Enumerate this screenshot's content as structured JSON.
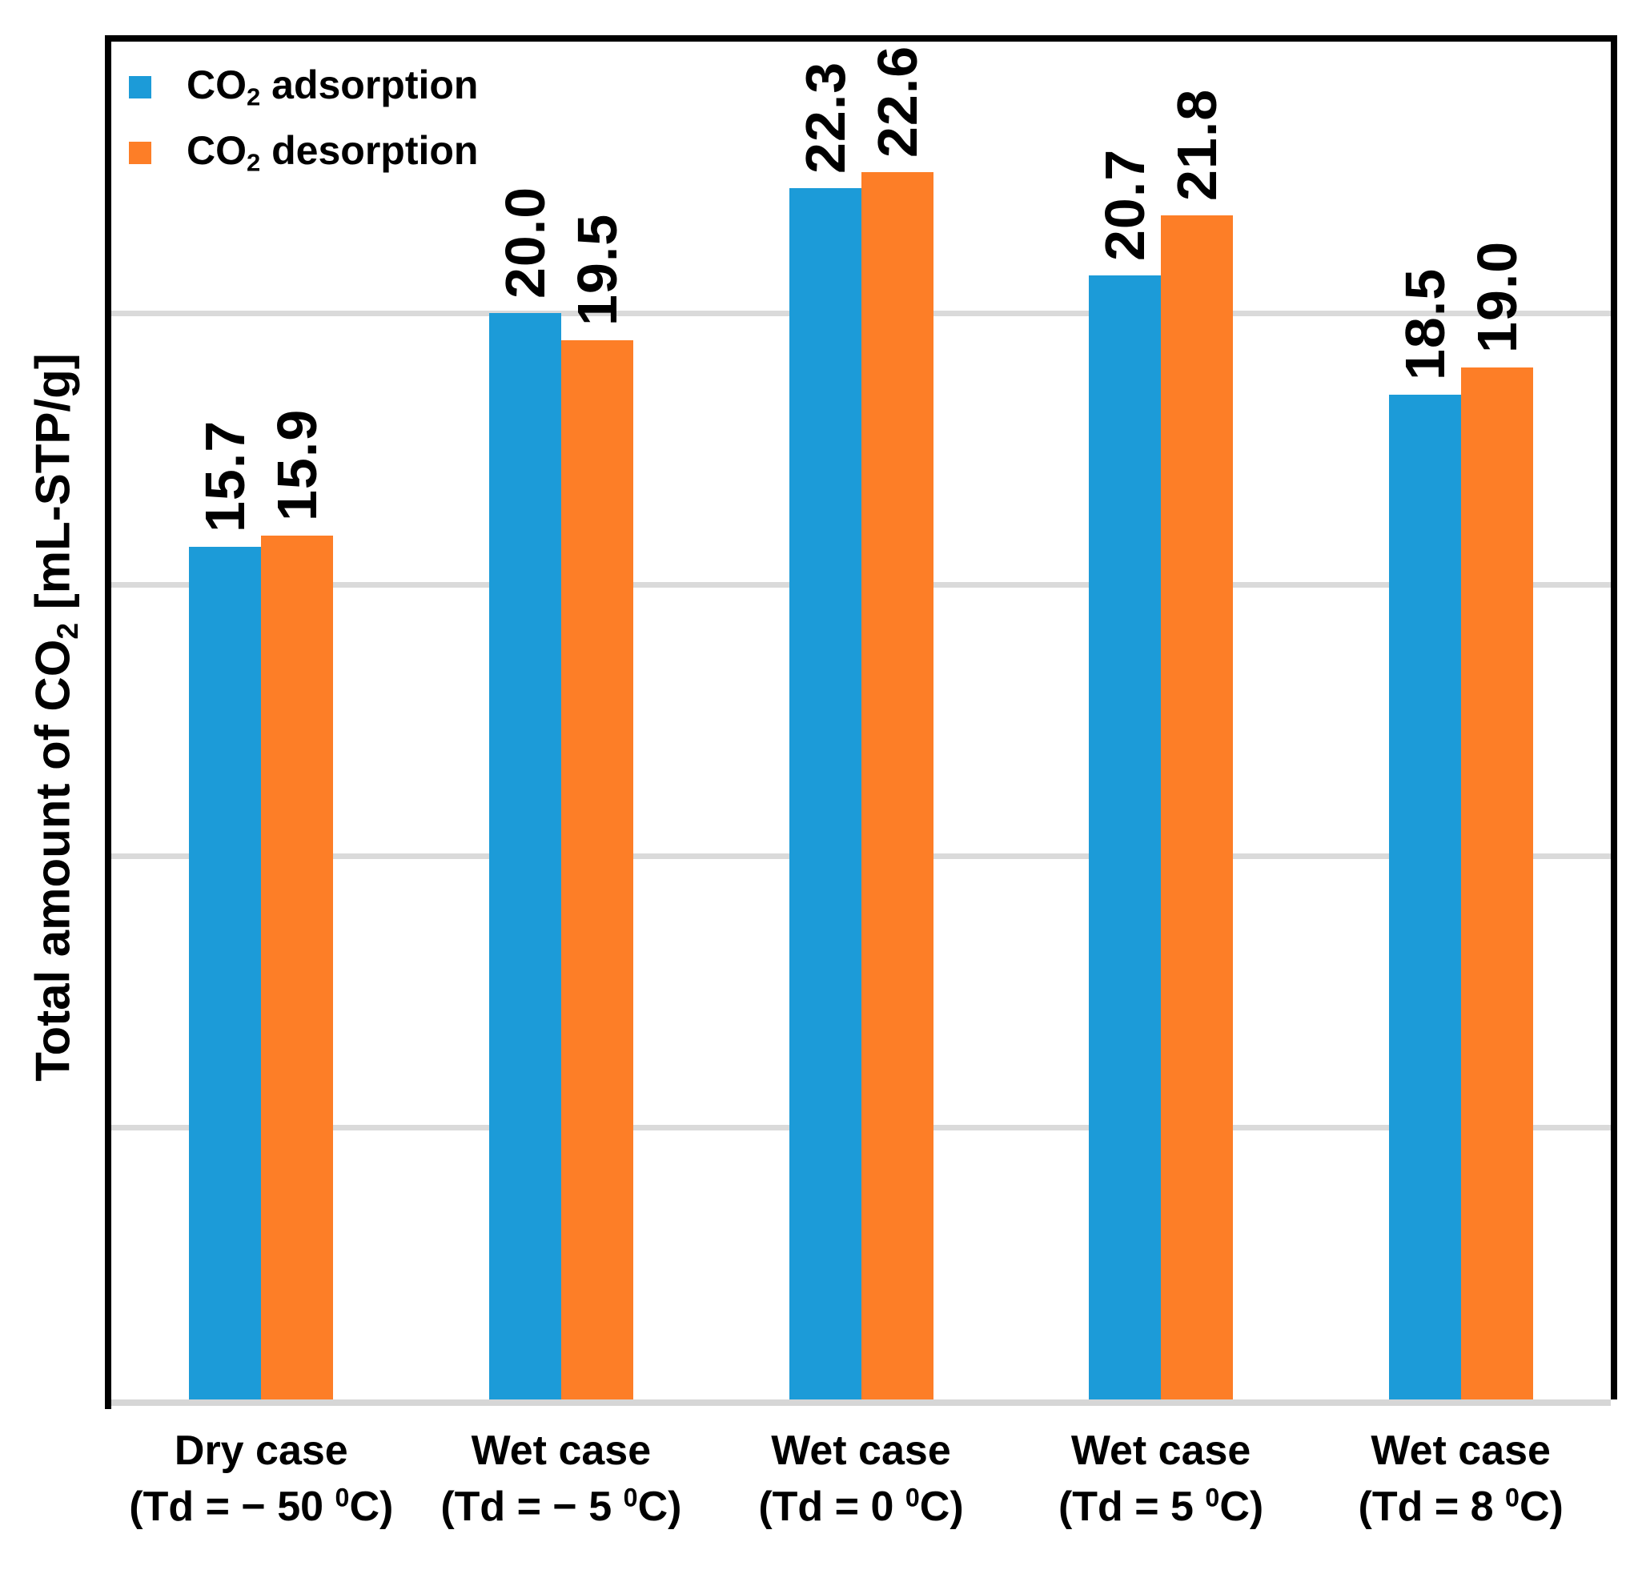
{
  "chart_data": {
    "type": "bar",
    "title": "",
    "ylabel_pre": "Total amount of CO",
    "ylabel_sub": "2",
    "ylabel_post": " [mL-STP/g]",
    "ylim": [
      0,
      25
    ],
    "gridline_values": [
      5,
      10,
      15,
      20
    ],
    "grid": "horizontal gridlines only, no y tick labels",
    "legend_position": "top-left inside plot",
    "categories": [
      {
        "line1": "Dry case",
        "line2_pre": "(Td = − 50 ",
        "line2_sup": "0",
        "line2_post": "C)"
      },
      {
        "line1": "Wet case",
        "line2_pre": "(Td = − 5 ",
        "line2_sup": "0",
        "line2_post": "C)"
      },
      {
        "line1": "Wet case",
        "line2_pre": "(Td = 0 ",
        "line2_sup": "0",
        "line2_post": "C)"
      },
      {
        "line1": "Wet case",
        "line2_pre": "(Td = 5 ",
        "line2_sup": "0",
        "line2_post": "C)"
      },
      {
        "line1": "Wet case",
        "line2_pre": "(Td = 8 ",
        "line2_sup": "0",
        "line2_post": "C)"
      }
    ],
    "series": [
      {
        "name_pre": "CO",
        "name_sub": "2",
        "name_post": " adsorption",
        "color": "#1c9bd8",
        "values": [
          15.7,
          20.0,
          22.3,
          20.7,
          18.5
        ]
      },
      {
        "name_pre": "CO",
        "name_sub": "2",
        "name_post": " desorption",
        "color": "#fd7e27",
        "values": [
          15.9,
          19.5,
          22.6,
          21.8,
          19.0
        ]
      }
    ],
    "colors": {
      "adsorption_blue": "#1c9bd8",
      "desorption_orange": "#fd7e27",
      "gridline_gray": "#dadada",
      "baseline_gray": "#d6d6d6",
      "frame_black": "#000000"
    }
  }
}
